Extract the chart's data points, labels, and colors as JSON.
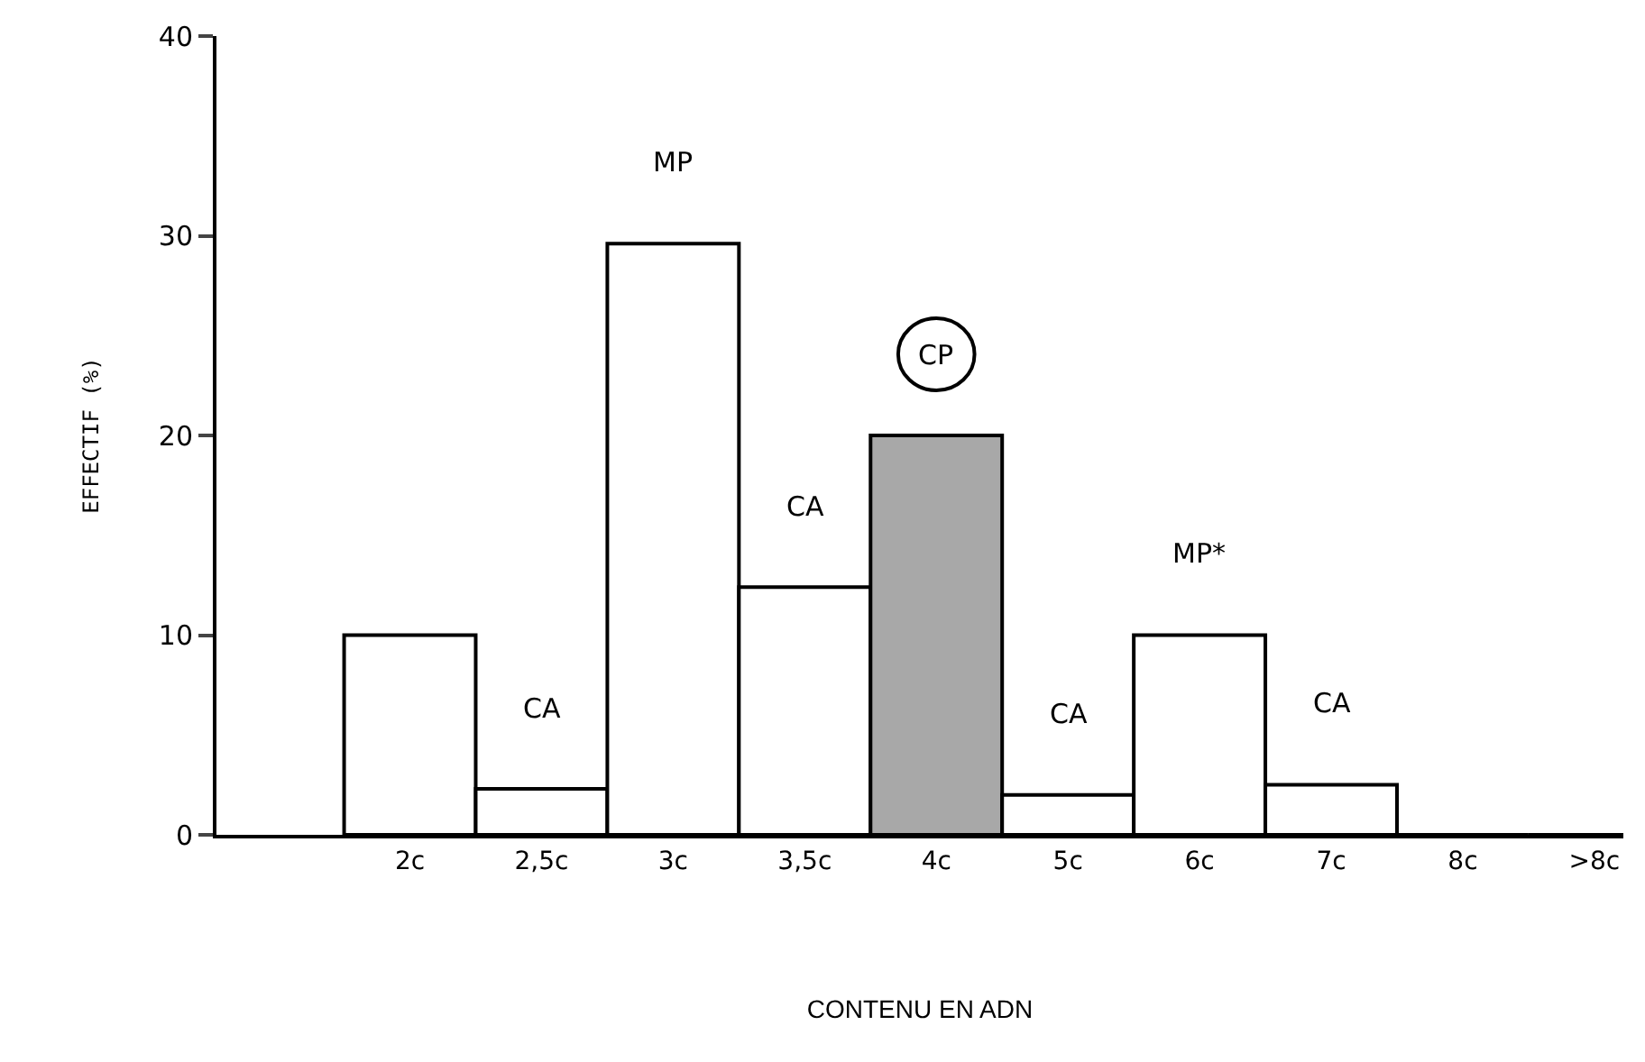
{
  "chart_data": {
    "type": "bar",
    "xlabel": "CONTENU EN ADN",
    "ylabel": "EFFECTIF (%)",
    "categories": [
      "2c",
      "2,5c",
      "3c",
      "3,5c",
      "4c",
      "5c",
      "6c",
      "7c",
      "8c",
      ">8c"
    ],
    "values": [
      10,
      2.3,
      29.6,
      12.4,
      20,
      2,
      10,
      2.5,
      0,
      0
    ],
    "colors": [
      "#ffffff",
      "#ffffff",
      "#ffffff",
      "#ffffff",
      "#a8a8a8",
      "#ffffff",
      "#ffffff",
      "#ffffff",
      "#ffffff",
      "#ffffff"
    ],
    "ylim": [
      0,
      40
    ],
    "yticks": [
      0,
      10,
      20,
      30,
      40
    ],
    "grid": false,
    "annotations": [
      {
        "text": "CA",
        "x": "2,5c",
        "y": 2.3
      },
      {
        "text": "MP",
        "x": "3c",
        "y": 29.6
      },
      {
        "text": "CA",
        "x": "3,5c",
        "y": 12.4
      },
      {
        "text": "CP",
        "x": "4c",
        "y": 20
      },
      {
        "text": "CA",
        "x": "5c",
        "y": 2
      },
      {
        "text": "MP*",
        "x": "6c",
        "y": 10
      },
      {
        "text": "CA",
        "x": "7c",
        "y": 2.5
      }
    ]
  }
}
